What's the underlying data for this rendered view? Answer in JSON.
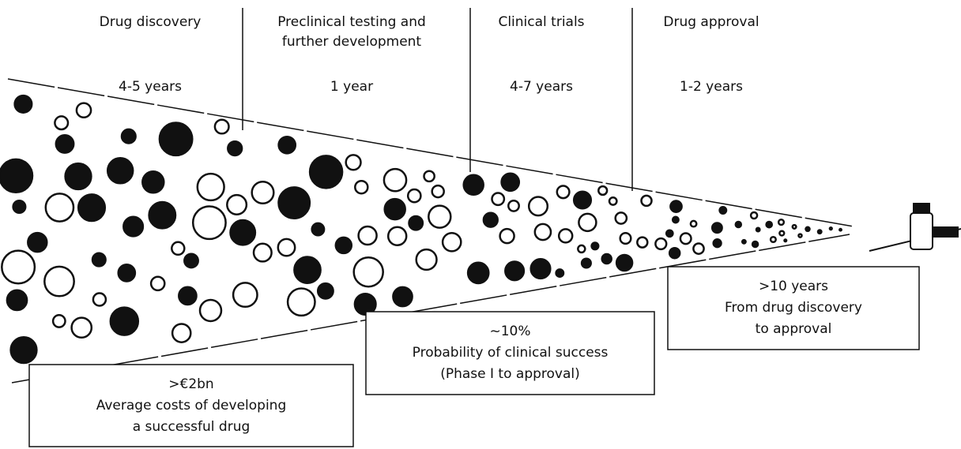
{
  "stages": [
    {
      "title": [
        "Drug discovery"
      ],
      "duration": "4-5 years"
    },
    {
      "title": [
        "Preclinical testing and",
        "further development"
      ],
      "duration": "1 year"
    },
    {
      "title": [
        "Clinical trials"
      ],
      "duration": "4-7 years"
    },
    {
      "title": [
        "Drug approval"
      ],
      "duration": "1-2 years"
    }
  ],
  "boxes": [
    {
      "lines": [
        ">€2bn",
        "Average costs of developing",
        "a successful drug"
      ]
    },
    {
      "lines": [
        "~10%",
        "Probability of clinical success",
        "(Phase I to approval)"
      ]
    },
    {
      "lines": [
        ">10 years",
        "From drug discovery",
        "to approval"
      ]
    }
  ]
}
